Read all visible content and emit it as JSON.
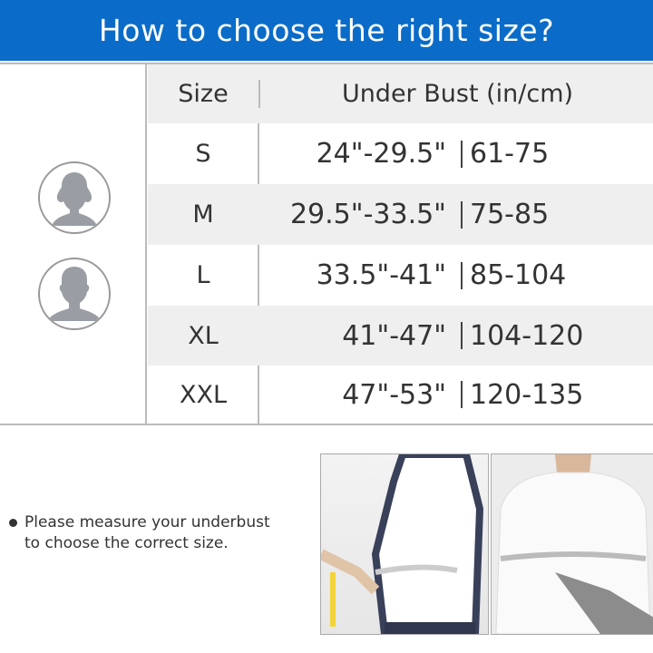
{
  "header": {
    "title": "How to choose the right size?"
  },
  "table": {
    "col_size": "Size",
    "col_under_bust": "Under Bust (in/cm)",
    "rows": [
      {
        "size": "S",
        "inches": "24\"-29.5\"",
        "cm": "61-75"
      },
      {
        "size": "M",
        "inches": "29.5\"-33.5\"",
        "cm": "75-85"
      },
      {
        "size": "L",
        "inches": "33.5\"-41\"",
        "cm": "85-104"
      },
      {
        "size": "XL",
        "inches": "41\"-47\"",
        "cm": "104-120"
      },
      {
        "size": "XXL",
        "inches": "47\"-53\"",
        "cm": "120-135"
      }
    ]
  },
  "icons": [
    "female-avatar-icon",
    "male-avatar-icon"
  ],
  "note": {
    "line1": "Please measure your underbust",
    "line2": "to choose the correct size."
  },
  "colors": {
    "header": "#0a6cc8",
    "row_alt": "#efefef",
    "avatar": "#9a9ea4"
  }
}
